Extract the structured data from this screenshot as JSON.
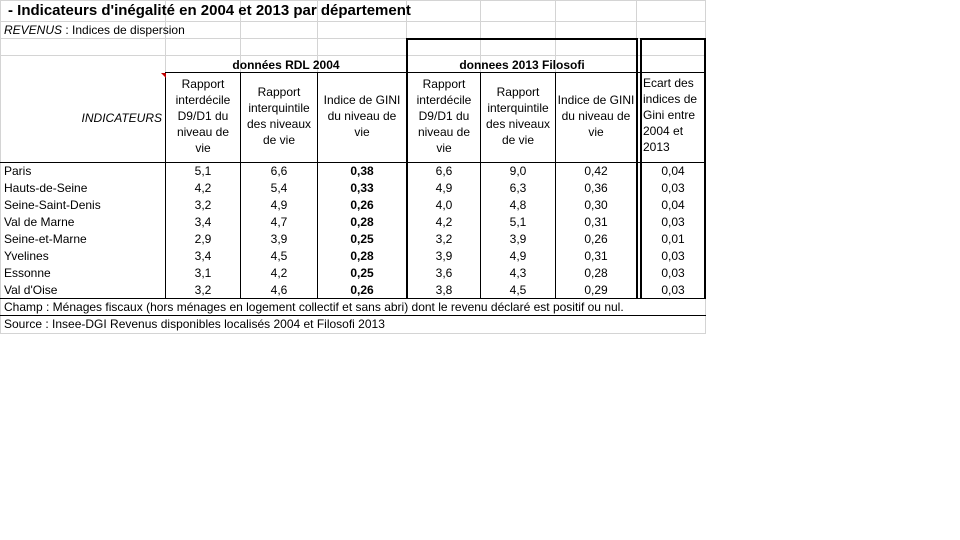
{
  "sheet": {
    "title": "- Indicateurs d'inégalité en 2004 et 2013 par département",
    "subtitle_label": "REVENUS",
    "subtitle_text": " : Indices de dispersion",
    "group_2004": "données RDL 2004",
    "group_2013": "donnees 2013 Filosofi",
    "indicators_label": "INDICATEURS",
    "headers": {
      "d9d1_2004": "Rapport interdécile D9/D1 du niveau de vie",
      "quint_2004": "Rapport interquintile des niveaux de vie",
      "gini_2004": "Indice de GINI du niveau de vie",
      "d9d1_2013": "Rapport interdécile D9/D1 du niveau de vie",
      "quint_2013": "Rapport interquintile des niveaux de vie",
      "gini_2013": "Indice de GINI du niveau de vie",
      "ecart": "Ecart des indices de Gini entre 2004 et 2013"
    },
    "rows": [
      {
        "name": "Paris",
        "a": "5,1",
        "b": "6,6",
        "c": "0,38",
        "d": "6,6",
        "e": "9,0",
        "f": "0,42",
        "g": "0,04"
      },
      {
        "name": "Hauts-de-Seine",
        "a": "4,2",
        "b": "5,4",
        "c": "0,33",
        "d": "4,9",
        "e": "6,3",
        "f": "0,36",
        "g": "0,03"
      },
      {
        "name": "Seine-Saint-Denis",
        "a": "3,2",
        "b": "4,9",
        "c": "0,26",
        "d": "4,0",
        "e": "4,8",
        "f": "0,30",
        "g": "0,04"
      },
      {
        "name": "Val de Marne",
        "a": "3,4",
        "b": "4,7",
        "c": "0,28",
        "d": "4,2",
        "e": "5,1",
        "f": "0,31",
        "g": "0,03"
      },
      {
        "name": "Seine-et-Marne",
        "a": "2,9",
        "b": "3,9",
        "c": "0,25",
        "d": "3,2",
        "e": "3,9",
        "f": "0,26",
        "g": "0,01"
      },
      {
        "name": "Yvelines",
        "a": "3,4",
        "b": "4,5",
        "c": "0,28",
        "d": "3,9",
        "e": "4,9",
        "f": "0,31",
        "g": "0,03"
      },
      {
        "name": "Essonne",
        "a": "3,1",
        "b": "4,2",
        "c": "0,25",
        "d": "3,6",
        "e": "4,3",
        "f": "0,28",
        "g": "0,03"
      },
      {
        "name": "Val d'Oise",
        "a": "3,2",
        "b": "4,6",
        "c": "0,26",
        "d": "3,8",
        "e": "4,5",
        "f": "0,29",
        "g": "0,03"
      }
    ],
    "champ": "Champ : Ménages fiscaux (hors ménages en logement collectif et sans abri) dont le revenu déclaré est positif ou nul.",
    "source": "Source : Insee-DGI Revenus disponibles localisés 2004 et Filosofi 2013"
  }
}
